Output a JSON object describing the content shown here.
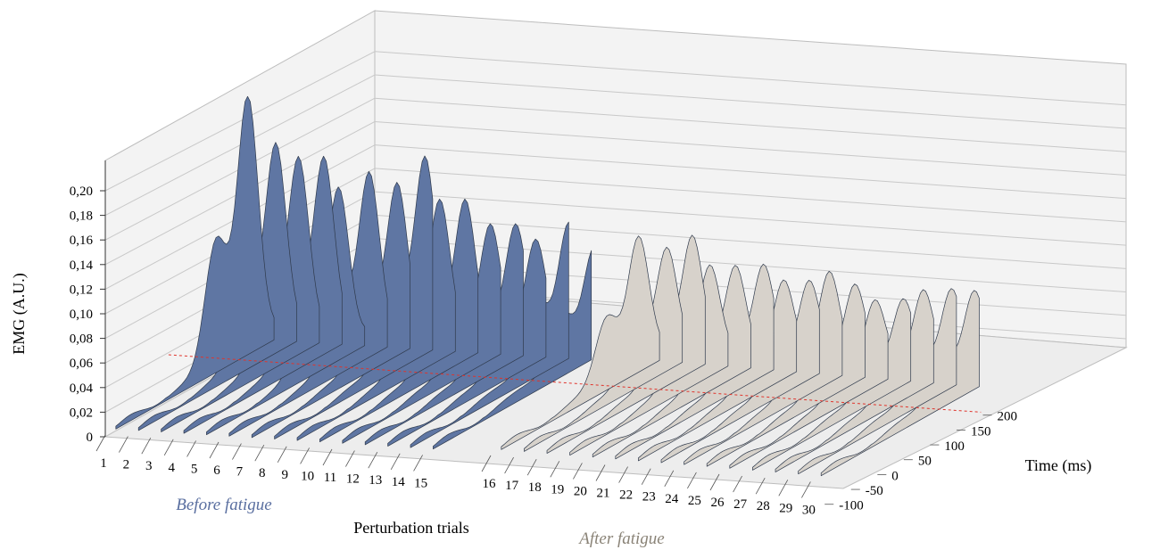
{
  "chart_data": {
    "type": "area",
    "projection": "3d-waterfall",
    "title": "",
    "xlabel": "Perturbation trials",
    "ylabel": "Time (ms)",
    "zlabel": "EMG (A.U.)",
    "x": [
      1,
      2,
      3,
      4,
      5,
      6,
      7,
      8,
      9,
      10,
      11,
      12,
      13,
      14,
      15,
      16,
      17,
      18,
      19,
      20,
      21,
      22,
      23,
      24,
      25,
      26,
      27,
      28,
      29,
      30
    ],
    "x_tick_labels": [
      "1",
      "2",
      "3",
      "4",
      "5",
      "6",
      "7",
      "8",
      "9",
      "10",
      "11",
      "12",
      "13",
      "14",
      "15",
      "16",
      "17",
      "18",
      "19",
      "20",
      "21",
      "22",
      "23",
      "24",
      "25",
      "26",
      "27",
      "28",
      "29",
      "30"
    ],
    "time_ticks": [
      -100,
      -50,
      0,
      50,
      100,
      150,
      200
    ],
    "time_tick_labels": [
      "-100",
      "-50",
      "0",
      "50",
      "100",
      "150",
      "200"
    ],
    "time_range": [
      -120,
      210
    ],
    "emg_ticks": [
      0,
      0.02,
      0.04,
      0.06,
      0.08,
      0.1,
      0.12,
      0.14,
      0.16,
      0.18,
      0.2
    ],
    "emg_tick_labels": [
      "0",
      "0,02",
      "0,04",
      "0,06",
      "0,08",
      "0,10",
      "0,12",
      "0,14",
      "0,16",
      "0,18",
      "0,20"
    ],
    "emg_range": [
      0,
      0.21
    ],
    "grid": true,
    "reference_line": {
      "time": 0,
      "color": "#e0342c",
      "style": "dashed"
    },
    "groups": [
      {
        "name": "Before fatigue",
        "trials": [
          1,
          15
        ],
        "color": "#5f76a3",
        "label_color": "#5a6fa0"
      },
      {
        "name": "After fatigue",
        "trials": [
          16,
          30
        ],
        "color": "#d7d2cb",
        "label_color": "#8a8377"
      }
    ],
    "series_peaks": [
      {
        "trial": 1,
        "peak": 0.2,
        "peak_time": 150
      },
      {
        "trial": 2,
        "peak": 0.16,
        "peak_time": 160
      },
      {
        "trial": 3,
        "peak": 0.15,
        "peak_time": 160
      },
      {
        "trial": 4,
        "peak": 0.15,
        "peak_time": 165
      },
      {
        "trial": 5,
        "peak": 0.13,
        "peak_time": 150
      },
      {
        "trial": 6,
        "peak": 0.14,
        "peak_time": 165
      },
      {
        "trial": 7,
        "peak": 0.13,
        "peak_time": 175
      },
      {
        "trial": 8,
        "peak": 0.15,
        "peak_time": 185
      },
      {
        "trial": 9,
        "peak": 0.12,
        "peak_time": 170
      },
      {
        "trial": 10,
        "peak": 0.12,
        "peak_time": 175
      },
      {
        "trial": 11,
        "peak": 0.1,
        "peak_time": 180
      },
      {
        "trial": 12,
        "peak": 0.1,
        "peak_time": 185
      },
      {
        "trial": 13,
        "peak": 0.09,
        "peak_time": 180
      },
      {
        "trial": 14,
        "peak": 0.1,
        "peak_time": 200
      },
      {
        "trial": 15,
        "peak": 0.08,
        "peak_time": 205
      },
      {
        "trial": 16,
        "peak": 0.1,
        "peak_time": 160
      },
      {
        "trial": 17,
        "peak": 0.09,
        "peak_time": 170
      },
      {
        "trial": 18,
        "peak": 0.1,
        "peak_time": 175
      },
      {
        "trial": 19,
        "peak": 0.08,
        "peak_time": 165
      },
      {
        "trial": 20,
        "peak": 0.08,
        "peak_time": 170
      },
      {
        "trial": 21,
        "peak": 0.08,
        "peak_time": 180
      },
      {
        "trial": 22,
        "peak": 0.07,
        "peak_time": 175
      },
      {
        "trial": 23,
        "peak": 0.07,
        "peak_time": 180
      },
      {
        "trial": 24,
        "peak": 0.08,
        "peak_time": 175
      },
      {
        "trial": 25,
        "peak": 0.07,
        "peak_time": 180
      },
      {
        "trial": 26,
        "peak": 0.06,
        "peak_time": 175
      },
      {
        "trial": 27,
        "peak": 0.06,
        "peak_time": 185
      },
      {
        "trial": 28,
        "peak": 0.07,
        "peak_time": 180
      },
      {
        "trial": 29,
        "peak": 0.07,
        "peak_time": 190
      },
      {
        "trial": 30,
        "peak": 0.07,
        "peak_time": 190
      }
    ]
  }
}
